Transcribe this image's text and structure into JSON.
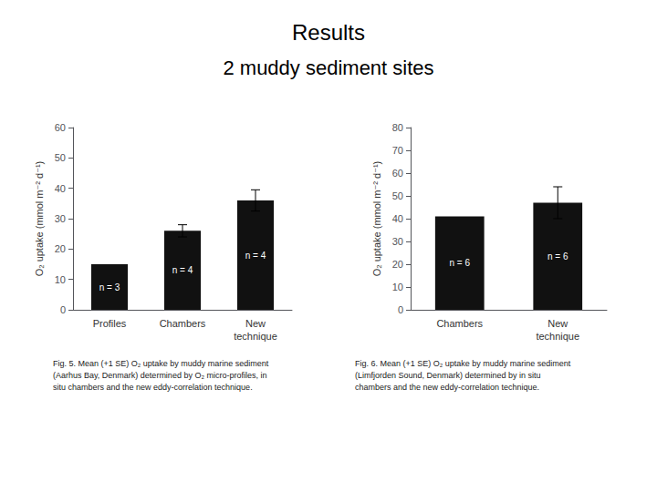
{
  "title": "Results",
  "subtitle": "2 muddy sediment sites",
  "chart_data": [
    {
      "type": "bar",
      "categories": [
        "Profiles",
        "Chambers",
        "New\ntechnique"
      ],
      "values": [
        15,
        26,
        36
      ],
      "errors": [
        0,
        2.0,
        3.5
      ],
      "n_labels": [
        "n = 3",
        "n = 4",
        "n = 4"
      ],
      "ylabel": "O₂ uptake (mmol m⁻² d⁻¹)",
      "ylim": [
        0,
        60
      ],
      "yticks": [
        0,
        10,
        20,
        30,
        40,
        50,
        60
      ],
      "color": "#111111",
      "grid": false,
      "annotations": [
        "Fig. 5. Mean (+1 SE) O₂ uptake by muddy marine sediment\n(Aarhus Bay, Denmark) determined by O₂ micro-profiles, in\nsitu chambers and the new eddy-correlation technique."
      ]
    },
    {
      "type": "bar",
      "categories": [
        "Chambers",
        "New\ntechnique"
      ],
      "values": [
        41,
        47
      ],
      "errors": [
        0,
        7
      ],
      "n_labels": [
        "n = 6",
        "n = 6"
      ],
      "ylabel": "O₂ uptake (mmol m⁻² d⁻¹)",
      "ylim": [
        0,
        80
      ],
      "yticks": [
        0,
        10,
        20,
        30,
        40,
        50,
        60,
        70,
        80
      ],
      "color": "#111111",
      "grid": false,
      "annotations": [
        "Fig. 6. Mean (+1 SE) O₂ uptake by muddy marine sediment\n(Limfjorden Sound, Denmark) determined by in situ\nchambers and the new eddy-correlation technique."
      ]
    }
  ]
}
